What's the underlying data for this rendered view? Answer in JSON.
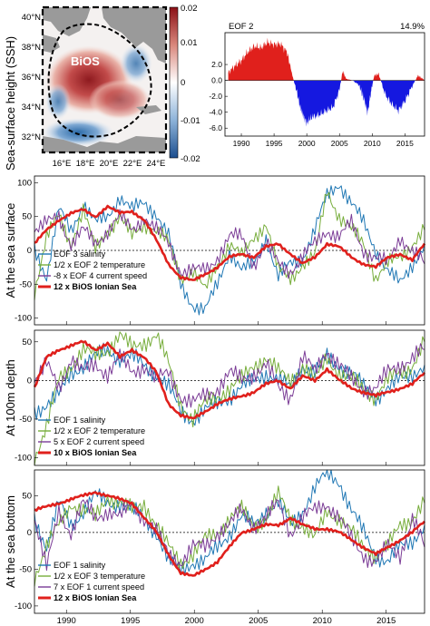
{
  "map": {
    "ylabel": "Sea-surface height (SSH)",
    "region_label": "BiOS",
    "lat_labels": [
      "40°N",
      "38°N",
      "36°N",
      "34°N",
      "32°N"
    ],
    "lon_labels": [
      "16°E",
      "18°E",
      "20°E",
      "22°E",
      "24°E"
    ],
    "colorbar_ticks": [
      "0.02",
      "0.01",
      "0",
      "-0.01",
      "-0.02"
    ],
    "colorbar_range": [
      -0.02,
      0.02
    ],
    "colors": {
      "positive": "#a31f24",
      "negative": "#2b6aa8",
      "land": "#9a9a9a"
    }
  },
  "chart_data": [
    {
      "id": "eof2",
      "type": "area",
      "label": "EOF 2",
      "variance": "14.9%",
      "x_ticks": [
        "1990",
        "1995",
        "2000",
        "2005",
        "2010",
        "2015"
      ],
      "y_ticks": [
        "2.0",
        "0.0",
        "-2.0",
        "-4.0",
        "-6.0"
      ],
      "xlim": [
        1987.5,
        2018
      ],
      "ylim": [
        -7,
        6
      ],
      "colors": {
        "positive": "#e0201c",
        "negative": "#1518e0"
      },
      "x": [
        1988,
        1989,
        1990,
        1991,
        1992,
        1993,
        1994,
        1995,
        1996,
        1997,
        1997.9,
        1998.5,
        1999,
        1999.5,
        2000,
        2000.5,
        2001,
        2002,
        2003,
        2004,
        2005,
        2005.5,
        2006,
        2007,
        2008,
        2008.8,
        2009.3,
        2009.8,
        2010.3,
        2011,
        2012,
        2013,
        2014,
        2015,
        2016,
        2017,
        2017.9
      ],
      "values": [
        1.0,
        1.8,
        2.5,
        3.6,
        4.3,
        4.1,
        4.8,
        4.5,
        4.6,
        3.5,
        0.3,
        -1.5,
        -3.4,
        -4.5,
        -5.4,
        -4.8,
        -4.6,
        -4.3,
        -3.8,
        -3.4,
        -1.2,
        1.2,
        0.2,
        0.0,
        -0.6,
        -2.5,
        -4.1,
        -1.5,
        0.6,
        0.8,
        -1.8,
        -3.0,
        -3.8,
        -2.6,
        -0.9,
        0.6,
        0.1
      ]
    },
    {
      "id": "surface",
      "type": "line",
      "ylabel": "At the sea surface",
      "y_ticks": [
        "100",
        "50",
        "0",
        "-50",
        "-100"
      ],
      "ylim": [
        -110,
        110
      ],
      "xlim": [
        1987.5,
        2018
      ],
      "series": [
        {
          "name": "EOF 3 salinity",
          "color": "#1f77b4",
          "width": 1.0,
          "values": [
            5,
            -40,
            60,
            30,
            70,
            40,
            50,
            80,
            60,
            70,
            55,
            20,
            -50,
            -80,
            -90,
            -50,
            0,
            -30,
            -20,
            20,
            -40,
            -20,
            -10,
            30,
            80,
            100,
            70,
            40,
            0,
            -30,
            -50,
            -20,
            10
          ]
        },
        {
          "name": "1/2 x EOF 2 temperature",
          "color": "#77ad3b",
          "width": 1.0,
          "values": [
            -60,
            20,
            50,
            10,
            60,
            0,
            30,
            50,
            20,
            40,
            30,
            10,
            -40,
            -30,
            -60,
            -20,
            10,
            -10,
            20,
            40,
            -30,
            -40,
            -20,
            -10,
            90,
            50,
            30,
            10,
            -40,
            -20,
            -10,
            10,
            30
          ]
        },
        {
          "name": "-8 x EOF 4 current speed",
          "color": "#7b3c96",
          "width": 1.0,
          "values": [
            30,
            40,
            50,
            10,
            30,
            10,
            30,
            50,
            30,
            50,
            30,
            10,
            -30,
            -30,
            -30,
            -10,
            20,
            20,
            -20,
            10,
            -20,
            -30,
            -10,
            10,
            30,
            20,
            40,
            0,
            -10,
            -20,
            20,
            0,
            -20
          ]
        },
        {
          "name": "12 x BiOS Ionian Sea",
          "color": "#e0201c",
          "width": 2.6,
          "values": [
            10,
            30,
            45,
            55,
            60,
            50,
            65,
            55,
            58,
            45,
            15,
            -20,
            -40,
            -45,
            -35,
            -25,
            -10,
            -5,
            -10,
            5,
            10,
            -5,
            -20,
            -10,
            10,
            5,
            -10,
            -20,
            -25,
            -10,
            -5,
            -15,
            10
          ]
        }
      ]
    },
    {
      "id": "depth100",
      "type": "line",
      "ylabel": "At 100m depth",
      "y_ticks": [
        "50",
        "0",
        "-50",
        "-100"
      ],
      "ylim": [
        -110,
        65
      ],
      "xlim": [
        1987.5,
        2018
      ],
      "series": [
        {
          "name": "EOF 1 salinity",
          "color": "#1f77b4",
          "width": 1.0,
          "values": [
            -40,
            -30,
            -20,
            10,
            20,
            30,
            40,
            30,
            30,
            20,
            10,
            -10,
            -40,
            -50,
            -40,
            -30,
            -20,
            -10,
            0,
            10,
            0,
            -10,
            20,
            10,
            30,
            20,
            10,
            -10,
            -20,
            -10,
            0,
            10,
            20
          ]
        },
        {
          "name": "1/2 x EOF 2 temperature",
          "color": "#77ad3b",
          "width": 1.0,
          "values": [
            -100,
            -60,
            0,
            20,
            40,
            30,
            40,
            60,
            40,
            50,
            60,
            20,
            -30,
            -50,
            -30,
            -20,
            -10,
            0,
            20,
            30,
            10,
            0,
            20,
            0,
            30,
            10,
            0,
            -10,
            -20,
            0,
            10,
            20,
            50
          ]
        },
        {
          "name": "5 x EOF 2 current speed",
          "color": "#7b3c96",
          "width": 1.0,
          "values": [
            0,
            20,
            -10,
            30,
            10,
            20,
            10,
            30,
            10,
            20,
            0,
            10,
            -20,
            -30,
            -20,
            -10,
            10,
            0,
            10,
            20,
            -10,
            -20,
            30,
            10,
            40,
            20,
            0,
            -10,
            -10,
            10,
            20,
            30,
            40
          ]
        },
        {
          "name": "10 x BiOS Ionian Sea",
          "color": "#e0201c",
          "width": 2.6,
          "values": [
            -10,
            30,
            40,
            45,
            50,
            40,
            48,
            30,
            40,
            30,
            10,
            -30,
            -45,
            -50,
            -40,
            -30,
            -25,
            -20,
            -15,
            -5,
            0,
            -10,
            5,
            0,
            15,
            0,
            -10,
            -15,
            -20,
            -15,
            -10,
            -5,
            10
          ]
        }
      ]
    },
    {
      "id": "bottom",
      "type": "line",
      "ylabel": "At the sea bottom",
      "y_ticks": [
        "50",
        "0",
        "-50",
        "-100"
      ],
      "ylim": [
        -110,
        85
      ],
      "xlim": [
        1987.5,
        2018
      ],
      "x_ticks": [
        "1990",
        "1995",
        "2000",
        "2005",
        "2010",
        "2015"
      ],
      "series": [
        {
          "name": "EOF 1 salinity",
          "color": "#1f77b4",
          "width": 1.0,
          "values": [
            20,
            -20,
            40,
            10,
            30,
            50,
            40,
            40,
            30,
            20,
            0,
            -40,
            -50,
            -40,
            -40,
            -20,
            0,
            20,
            10,
            30,
            40,
            10,
            30,
            60,
            80,
            70,
            30,
            0,
            -30,
            -40,
            -20,
            -10,
            10
          ]
        },
        {
          "name": "1/2 x EOF 3 temperature",
          "color": "#77ad3b",
          "width": 1.0,
          "values": [
            -60,
            -20,
            10,
            40,
            30,
            20,
            50,
            40,
            30,
            40,
            10,
            -20,
            -40,
            -30,
            -10,
            0,
            20,
            30,
            10,
            20,
            50,
            20,
            10,
            -10,
            30,
            20,
            0,
            -20,
            -30,
            -20,
            10,
            20,
            40
          ]
        },
        {
          "name": "7 x EOF 1 current speed",
          "color": "#7b3c96",
          "width": 1.0,
          "values": [
            20,
            -50,
            30,
            0,
            40,
            20,
            30,
            20,
            40,
            20,
            0,
            -30,
            -40,
            -20,
            -20,
            0,
            10,
            30,
            10,
            20,
            40,
            0,
            20,
            30,
            40,
            20,
            -10,
            -30,
            -40,
            -20,
            -30,
            20,
            -20
          ]
        },
        {
          "name": "12 x BiOS Ionian Sea",
          "color": "#e0201c",
          "width": 2.6,
          "values": [
            30,
            35,
            40,
            45,
            50,
            55,
            50,
            45,
            40,
            20,
            0,
            -30,
            -55,
            -60,
            -50,
            -40,
            -20,
            0,
            5,
            10,
            10,
            20,
            10,
            5,
            5,
            0,
            -10,
            -20,
            -30,
            -20,
            -10,
            0,
            15
          ]
        }
      ]
    }
  ]
}
